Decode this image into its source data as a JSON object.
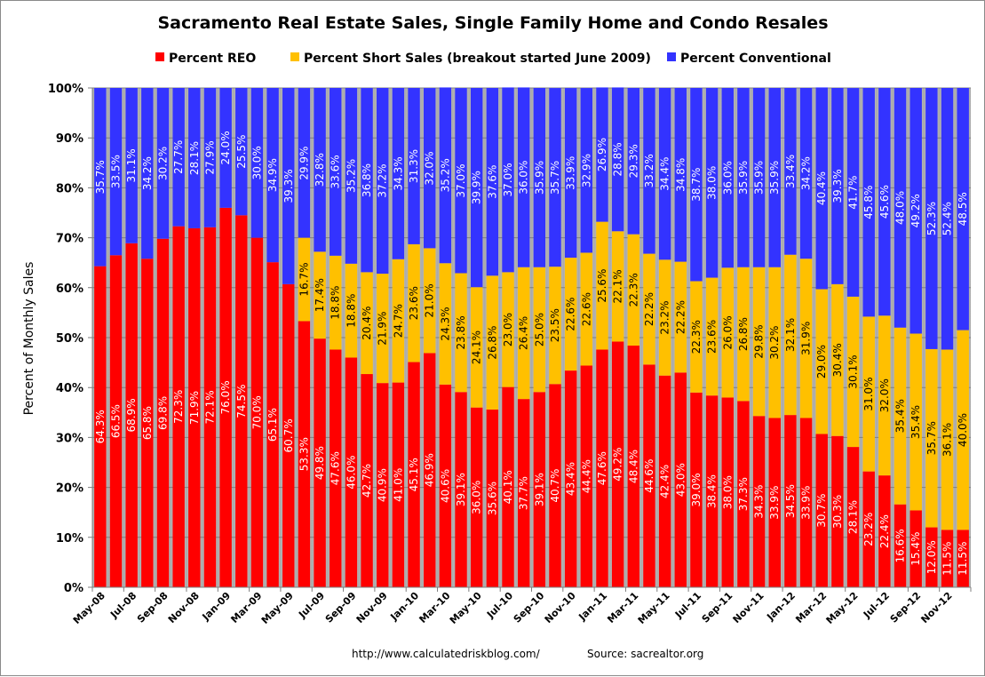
{
  "chart_data": {
    "type": "bar",
    "stacked": true,
    "title": "Sacramento Real Estate Sales, Single Family Home and Condo Resales",
    "xlabel": "",
    "ylabel": "Percent of Monthly Sales",
    "ylim": [
      0,
      100
    ],
    "yticks": [
      "0%",
      "10%",
      "20%",
      "30%",
      "40%",
      "50%",
      "60%",
      "70%",
      "80%",
      "90%",
      "100%"
    ],
    "grid": true,
    "legend_position": "top",
    "categories": [
      "May-08",
      "Jun-08",
      "Jul-08",
      "Aug-08",
      "Sep-08",
      "Oct-08",
      "Nov-08",
      "Dec-08",
      "Jan-09",
      "Feb-09",
      "Mar-09",
      "Apr-09",
      "May-09",
      "Jun-09",
      "Jul-09",
      "Aug-09",
      "Sep-09",
      "Oct-09",
      "Nov-09",
      "Dec-09",
      "Jan-10",
      "Feb-10",
      "Mar-10",
      "Apr-10",
      "May-10",
      "Jun-10",
      "Jul-10",
      "Aug-10",
      "Sep-10",
      "Oct-10",
      "Nov-10",
      "Dec-10",
      "Jan-11",
      "Feb-11",
      "Mar-11",
      "Apr-11",
      "May-11",
      "Jun-11",
      "Jul-11",
      "Aug-11",
      "Sep-11",
      "Oct-11",
      "Nov-11",
      "Dec-11",
      "Jan-12",
      "Feb-12",
      "Mar-12",
      "Apr-12",
      "May-12",
      "Jun-12",
      "Jul-12",
      "Aug-12",
      "Sep-12",
      "Oct-12",
      "Nov-12",
      "Dec-12"
    ],
    "xtick_labels": [
      "May-08",
      "Jul-08",
      "Sep-08",
      "Nov-08",
      "Jan-09",
      "Mar-09",
      "May-09",
      "Jul-09",
      "Sep-09",
      "Nov-09",
      "Jan-10",
      "Mar-10",
      "May-10",
      "Jul-10",
      "Sep-10",
      "Nov-10",
      "Jan-11",
      "Mar-11",
      "May-11",
      "Jul-11",
      "Sep-11",
      "Nov-11",
      "Jan-12",
      "Mar-12",
      "May-12",
      "Jul-12",
      "Sep-12",
      "Nov-12"
    ],
    "series": [
      {
        "name": "Percent REO",
        "color": "#ff0000",
        "label_color": "#ffffff",
        "values": [
          64.3,
          66.5,
          68.9,
          65.8,
          69.8,
          72.3,
          71.9,
          72.1,
          76.0,
          74.5,
          70.0,
          65.1,
          60.7,
          53.3,
          49.8,
          47.6,
          46.0,
          42.7,
          40.9,
          41.0,
          45.1,
          46.9,
          40.6,
          39.1,
          36.0,
          35.6,
          40.1,
          37.7,
          39.1,
          40.7,
          43.4,
          44.4,
          47.6,
          49.2,
          48.4,
          44.6,
          42.4,
          43.0,
          39.0,
          38.4,
          38.0,
          37.3,
          34.3,
          33.9,
          34.5,
          33.9,
          30.7,
          30.3,
          28.1,
          23.2,
          22.4,
          16.6,
          15.4,
          12.0,
          11.5,
          11.5
        ]
      },
      {
        "name": "Percent Short Sales (breakout started June 2009)",
        "color": "#ffc000",
        "label_color": "#000000",
        "values": [
          null,
          null,
          null,
          null,
          null,
          null,
          null,
          null,
          null,
          null,
          null,
          null,
          null,
          16.7,
          17.4,
          18.8,
          18.8,
          20.4,
          21.9,
          24.7,
          23.6,
          21.0,
          24.3,
          23.8,
          24.1,
          26.8,
          23.0,
          26.4,
          25.0,
          23.5,
          22.6,
          22.6,
          25.6,
          22.1,
          22.3,
          22.2,
          23.2,
          22.2,
          22.3,
          23.6,
          26.0,
          26.8,
          29.8,
          30.2,
          32.1,
          31.9,
          29.0,
          30.4,
          30.1,
          31.0,
          32.0,
          35.4,
          35.4,
          35.7,
          36.1,
          40.0
        ]
      },
      {
        "name": "Percent Conventional",
        "color": "#3333ff",
        "label_color": "#ffffff",
        "values": [
          35.7,
          33.5,
          31.1,
          34.2,
          30.2,
          27.7,
          28.1,
          27.9,
          24.0,
          25.5,
          30.0,
          34.9,
          39.3,
          29.9,
          32.8,
          33.6,
          35.2,
          36.8,
          37.2,
          34.3,
          31.3,
          32.0,
          35.2,
          37.0,
          39.9,
          37.6,
          37.0,
          36.0,
          35.9,
          35.7,
          33.9,
          32.9,
          26.9,
          28.8,
          29.3,
          33.2,
          34.4,
          34.8,
          38.7,
          38.0,
          36.0,
          35.9,
          35.9,
          35.9,
          33.4,
          34.2,
          40.4,
          39.3,
          41.7,
          45.8,
          45.6,
          48.0,
          49.2,
          52.3,
          52.4,
          48.5
        ]
      }
    ],
    "footer": {
      "url": "http://www.calculatedriskblog.com/",
      "source": "Source:  sacrealtor.org"
    }
  }
}
